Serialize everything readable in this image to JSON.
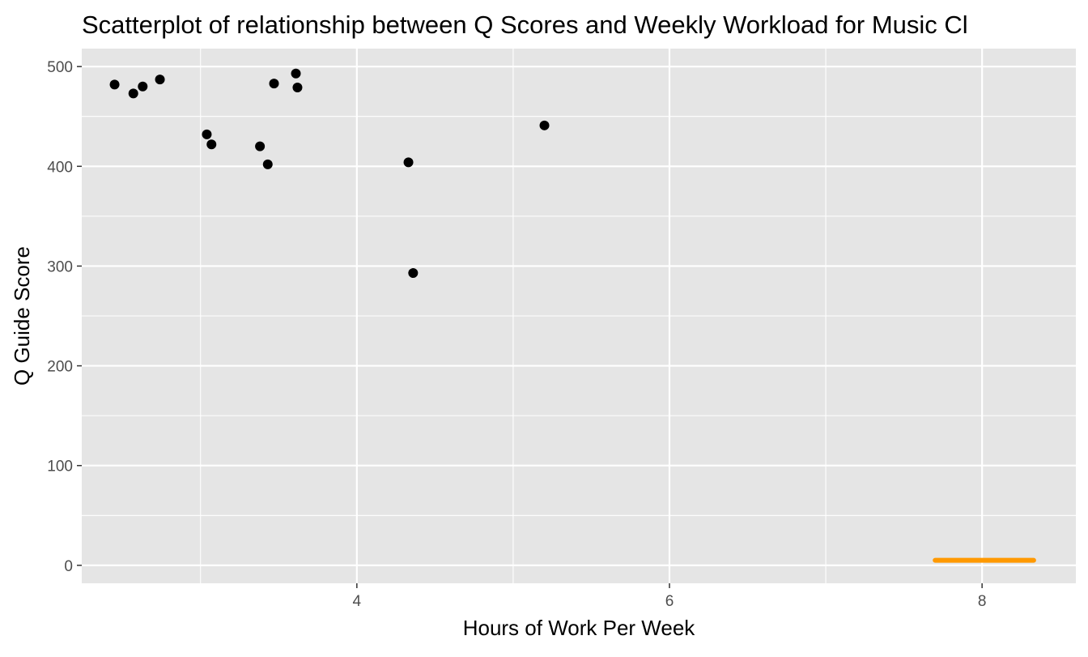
{
  "chart_data": {
    "type": "scatter",
    "title": "Scatterplot of relationship between Q Scores and Weekly Workload for Music Cl",
    "xlabel": "Hours of Work Per Week",
    "ylabel": "Q Guide Score",
    "xlim": [
      2.24,
      8.6
    ],
    "ylim": [
      -18,
      518
    ],
    "x_ticks": [
      4,
      6,
      8
    ],
    "x_minor_ticks": [
      3,
      5,
      7
    ],
    "y_ticks": [
      0,
      100,
      200,
      300,
      400,
      500
    ],
    "y_minor_ticks": [
      50,
      150,
      250,
      350,
      450
    ],
    "grid": true,
    "panel_background": "#e5e5e5",
    "grid_color": "#ffffff",
    "point_color": "#000000",
    "segment_color": "#ff9900",
    "points": [
      {
        "x": 2.45,
        "y": 482
      },
      {
        "x": 2.57,
        "y": 473
      },
      {
        "x": 2.63,
        "y": 480
      },
      {
        "x": 2.74,
        "y": 487
      },
      {
        "x": 3.04,
        "y": 432
      },
      {
        "x": 3.07,
        "y": 422
      },
      {
        "x": 3.38,
        "y": 420
      },
      {
        "x": 3.43,
        "y": 402
      },
      {
        "x": 3.47,
        "y": 483
      },
      {
        "x": 3.61,
        "y": 493
      },
      {
        "x": 3.62,
        "y": 479
      },
      {
        "x": 4.33,
        "y": 404
      },
      {
        "x": 4.36,
        "y": 293
      },
      {
        "x": 5.2,
        "y": 441
      }
    ],
    "segment": {
      "x_start": 7.7,
      "x_end": 8.33,
      "y": 5
    }
  }
}
